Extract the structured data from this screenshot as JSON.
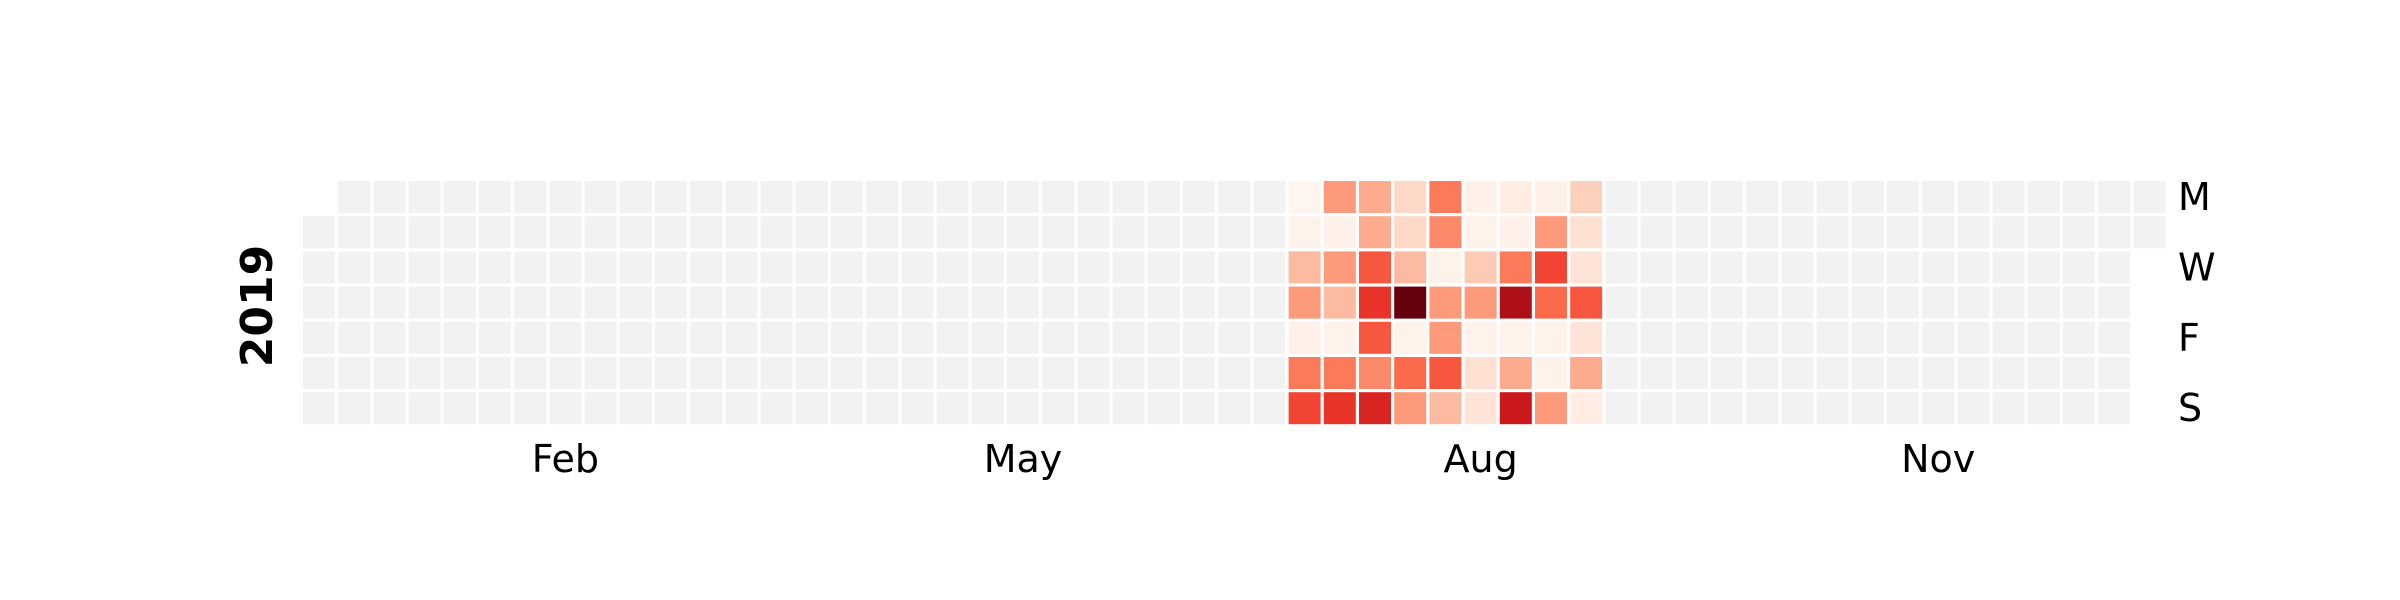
{
  "chart_data": {
    "type": "heatmap",
    "subtype": "calendar",
    "year": "2019",
    "start_date": "2019-01-01",
    "month_labels": [
      {
        "label": "Feb",
        "week": 7
      },
      {
        "label": "May",
        "week": 20
      },
      {
        "label": "Aug",
        "week": 33
      },
      {
        "label": "Nov",
        "week": 46
      }
    ],
    "weekday_labels": [
      {
        "label": "M",
        "day": 0
      },
      {
        "label": "W",
        "day": 2
      },
      {
        "label": "F",
        "day": 4
      },
      {
        "label": "S",
        "day": 6
      }
    ],
    "colormap": "Reds",
    "value_range": [
      0,
      1
    ],
    "empty_color": "#f2f2f2",
    "active_weeks": [
      28,
      36
    ],
    "intensity": [
      [
        0.0,
        0.35,
        0.3,
        0.15,
        0.45,
        0.03,
        0.05,
        0.03,
        0.18
      ],
      [
        0.02,
        0.03,
        0.3,
        0.15,
        0.4,
        0.02,
        0.03,
        0.35,
        0.12
      ],
      [
        0.25,
        0.35,
        0.55,
        0.25,
        0.02,
        0.2,
        0.45,
        0.6,
        0.1
      ],
      [
        0.35,
        0.25,
        0.65,
        1.0,
        0.35,
        0.35,
        0.85,
        0.5,
        0.55
      ],
      [
        0.03,
        0.02,
        0.55,
        0.02,
        0.35,
        0.02,
        0.02,
        0.02,
        0.1
      ],
      [
        0.45,
        0.45,
        0.4,
        0.5,
        0.55,
        0.12,
        0.3,
        0.02,
        0.3
      ],
      [
        0.6,
        0.65,
        0.7,
        0.35,
        0.25,
        0.1,
        0.75,
        0.35,
        0.05
      ]
    ]
  }
}
